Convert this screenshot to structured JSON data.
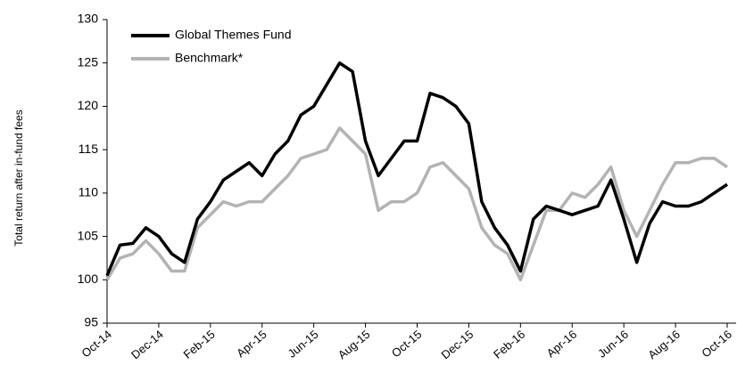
{
  "chart_data": {
    "type": "line",
    "ylabel": "Total return after in-fund fees",
    "categories": [
      "Oct-14",
      null,
      null,
      null,
      "Dec-14",
      null,
      null,
      null,
      "Feb-15",
      null,
      null,
      null,
      "Apr-15",
      null,
      null,
      null,
      "Jun-15",
      null,
      null,
      null,
      "Aug-15",
      null,
      null,
      null,
      "Oct-15",
      null,
      null,
      null,
      "Dec-15",
      null,
      null,
      null,
      "Feb-16",
      null,
      null,
      null,
      "Apr-16",
      null,
      null,
      null,
      "Jun-16",
      null,
      null,
      null,
      "Aug-16",
      null,
      null,
      null,
      "Oct-16"
    ],
    "series": [
      {
        "name": "Global Themes Fund",
        "color": "#000000",
        "values": [
          100.5,
          104,
          104.2,
          106,
          105,
          103,
          102,
          107,
          109,
          111.5,
          112.5,
          113.5,
          112,
          114.5,
          116,
          119,
          120,
          122.5,
          125,
          124,
          116,
          112,
          114,
          116,
          116,
          121.5,
          121,
          120,
          118,
          109,
          106,
          104,
          101,
          107,
          108.5,
          108,
          107.5,
          108,
          108.5,
          111.5,
          107,
          102,
          106.5,
          109,
          108.5,
          108.5,
          109,
          110,
          111
        ]
      },
      {
        "name": "Benchmark*",
        "color": "#b3b3b3",
        "values": [
          100,
          102.5,
          103,
          104.5,
          103,
          101,
          101,
          106,
          107.5,
          109,
          108.5,
          109,
          109,
          110.5,
          112,
          114,
          114.5,
          115,
          117.5,
          116,
          114.5,
          108,
          109,
          109,
          110,
          113,
          113.5,
          112,
          110.5,
          106,
          104,
          103,
          100,
          104,
          108,
          108,
          110,
          109.5,
          111,
          113,
          108,
          105,
          108,
          111,
          113.5,
          113.5,
          114,
          114,
          113
        ]
      }
    ],
    "ylim": [
      95,
      130
    ],
    "yticks": [
      95,
      100,
      105,
      110,
      115,
      120,
      125,
      130
    ],
    "grid": false,
    "legend": "top-left"
  }
}
